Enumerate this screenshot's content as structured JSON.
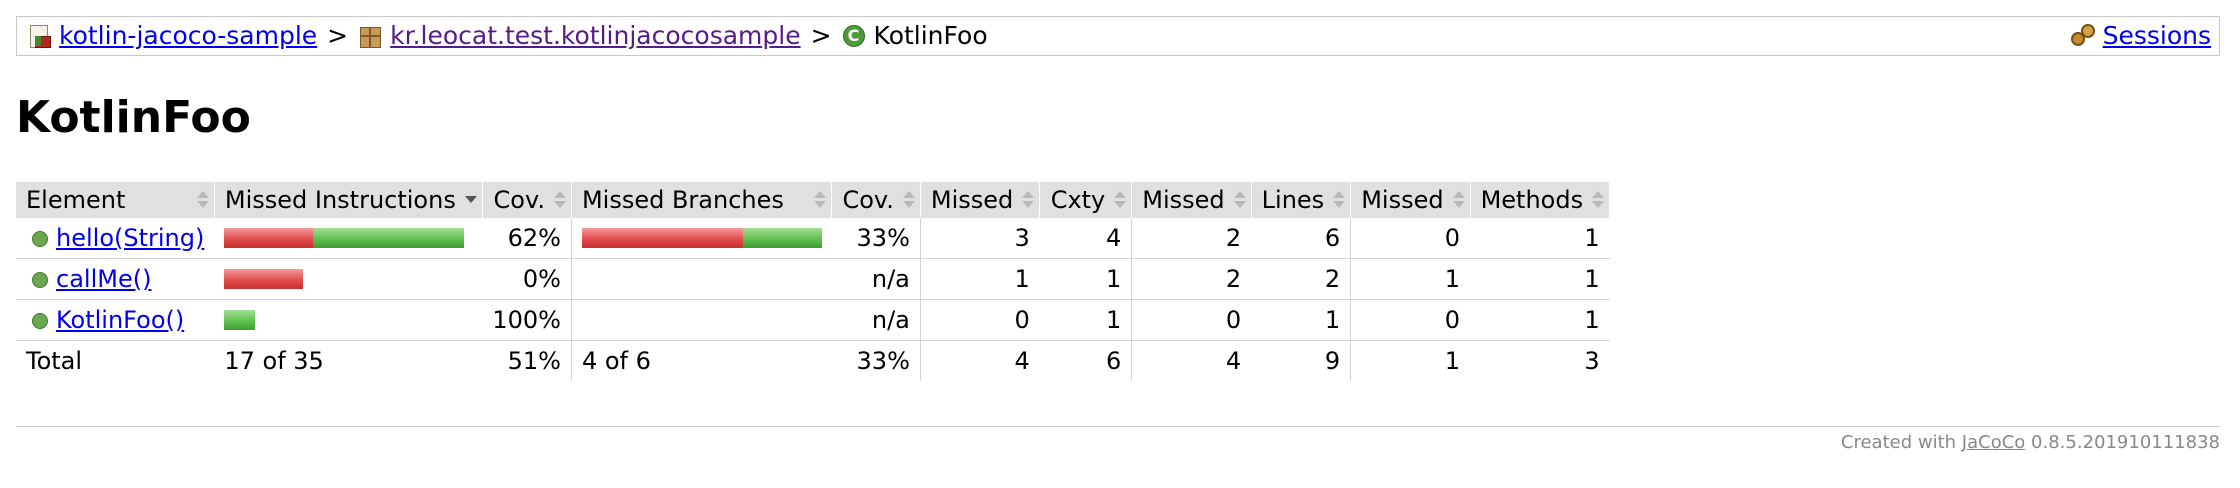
{
  "breadcrumb": {
    "items": [
      {
        "label": "kotlin-jacoco-sample",
        "icon": "report-icon"
      },
      {
        "label": "kr.leocat.test.kotlinjacocosample",
        "icon": "package-icon"
      },
      {
        "label": "KotlinFoo",
        "icon": "class-icon"
      }
    ],
    "separator": ">",
    "sessions_label": "Sessions"
  },
  "page_title": "KotlinFoo",
  "table": {
    "headers": {
      "element": "Element",
      "missed_instructions": "Missed Instructions",
      "cov_instructions": "Cov.",
      "missed_branches": "Missed Branches",
      "cov_branches": "Cov.",
      "missed_cxty": "Missed",
      "cxty": "Cxty",
      "missed_lines": "Missed",
      "lines": "Lines",
      "missed_methods": "Missed",
      "methods": "Methods"
    },
    "rows": [
      {
        "element": "hello(String)",
        "instr_bar": {
          "missed_fraction": 0.37,
          "covered_fraction": 0.63
        },
        "cov_instructions": "62%",
        "branch_bar": {
          "missed_fraction": 0.67,
          "covered_fraction": 0.33
        },
        "cov_branches": "33%",
        "missed_cxty": "3",
        "cxty": "4",
        "missed_lines": "2",
        "lines": "6",
        "missed_methods": "0",
        "methods": "1"
      },
      {
        "element": "callMe()",
        "instr_bar": {
          "missed_fraction": 0.33,
          "covered_fraction": 0.0
        },
        "cov_instructions": "0%",
        "branch_bar": null,
        "cov_branches": "n/a",
        "missed_cxty": "1",
        "cxty": "1",
        "missed_lines": "2",
        "lines": "2",
        "missed_methods": "1",
        "methods": "1"
      },
      {
        "element": "KotlinFoo()",
        "instr_bar": {
          "missed_fraction": 0.0,
          "covered_fraction": 0.13
        },
        "cov_instructions": "100%",
        "branch_bar": null,
        "cov_branches": "n/a",
        "missed_cxty": "0",
        "cxty": "1",
        "missed_lines": "0",
        "lines": "1",
        "missed_methods": "0",
        "methods": "1"
      }
    ],
    "total": {
      "label": "Total",
      "missed_instructions": "17 of 35",
      "cov_instructions": "51%",
      "missed_branches": "4 of 6",
      "cov_branches": "33%",
      "missed_cxty": "4",
      "cxty": "6",
      "missed_lines": "4",
      "lines": "9",
      "missed_methods": "1",
      "methods": "3"
    }
  },
  "footer": {
    "prefix": "Created with",
    "link": "JaCoCo",
    "version": "0.8.5.201910111838"
  },
  "colors": {
    "missed_bar": "#e04848",
    "covered_bar": "#5cbc4a",
    "header_bg": "#e0e0e0",
    "link": "#0000ee"
  }
}
